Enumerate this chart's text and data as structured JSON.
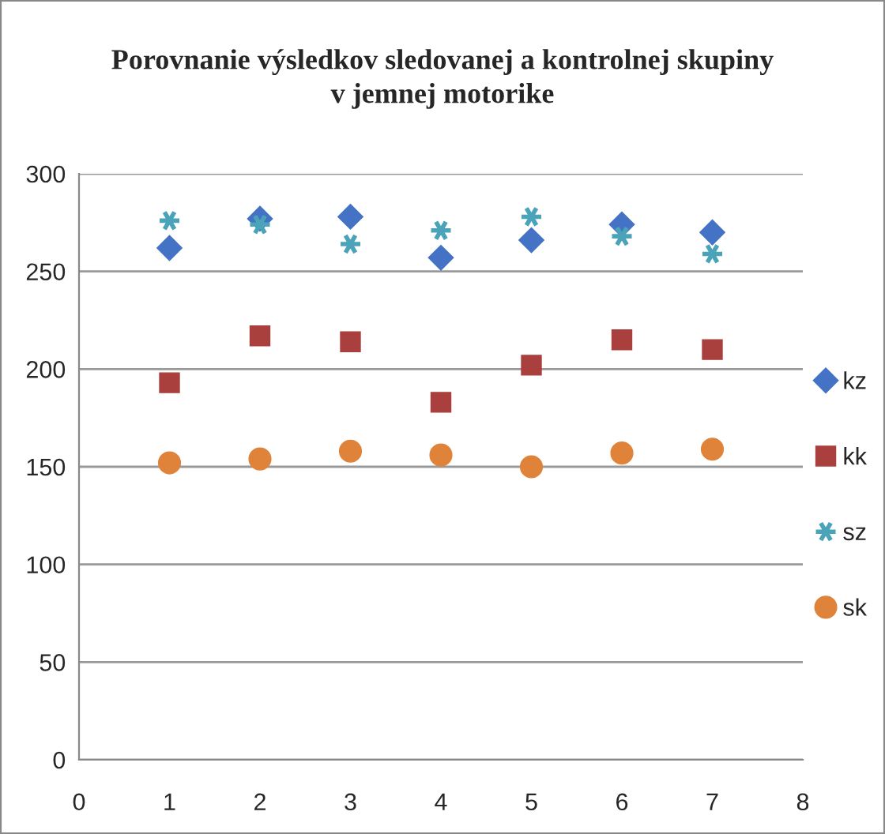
{
  "chart_data": {
    "type": "scatter",
    "title": "Porovnanie výsledkov sledovanej a kontrolnej skupiny\nv jemnej motorike",
    "x": [
      1,
      2,
      3,
      4,
      5,
      6,
      7
    ],
    "series": [
      {
        "name": "kz",
        "color": "#4472c4",
        "marker": "diamond",
        "values": [
          262,
          277,
          278,
          257,
          266,
          274,
          270
        ]
      },
      {
        "name": "kk",
        "color": "#a9403e",
        "marker": "square",
        "values": [
          193,
          217,
          214,
          183,
          202,
          215,
          210
        ]
      },
      {
        "name": "sz",
        "color": "#4aa3b8",
        "marker": "cross",
        "values": [
          276,
          274,
          264,
          271,
          278,
          268,
          259
        ]
      },
      {
        "name": "sk",
        "color": "#e0833a",
        "marker": "circle",
        "values": [
          152,
          154,
          158,
          156,
          150,
          157,
          159
        ]
      }
    ],
    "xlim": [
      0,
      8
    ],
    "xticks": [
      0,
      1,
      2,
      3,
      4,
      5,
      6,
      7,
      8
    ],
    "ylim": [
      0,
      300
    ],
    "yticks": [
      0,
      50,
      100,
      150,
      200,
      250,
      300
    ],
    "grid": "y",
    "legend": "right"
  }
}
